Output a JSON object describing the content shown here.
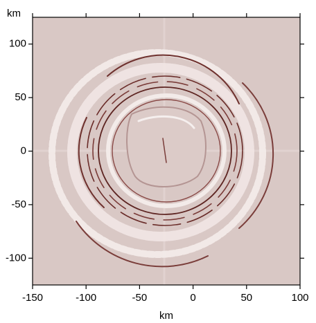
{
  "chart_data": {
    "type": "image",
    "xlabel": "km",
    "ylabel": "km",
    "xlim": [
      -150,
      100
    ],
    "ylim": [
      -125,
      125
    ],
    "xticks": [
      -150,
      -100,
      -50,
      0,
      50,
      100
    ],
    "yticks": [
      -100,
      -50,
      0,
      50,
      100
    ],
    "color": "#d9c8c5"
  }
}
